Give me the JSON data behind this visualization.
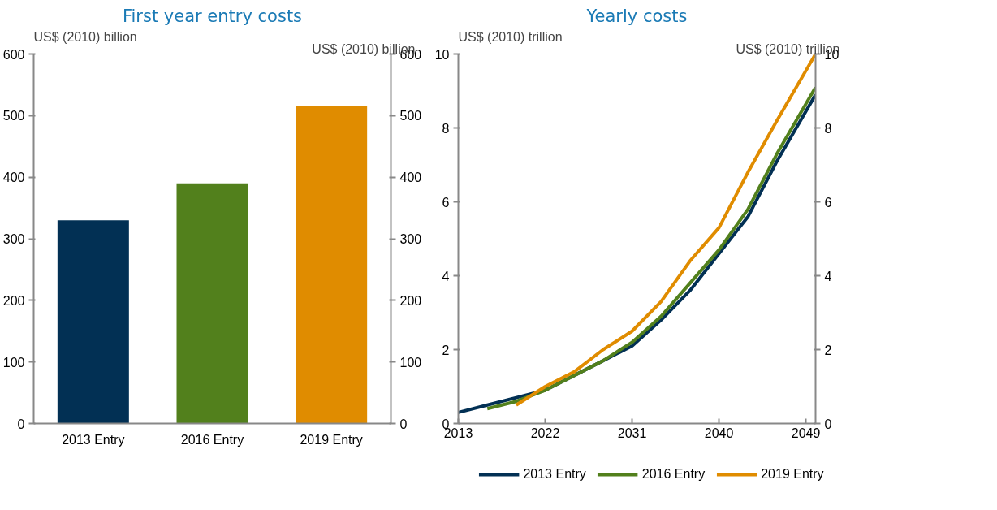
{
  "chart_data": [
    {
      "type": "bar",
      "title": "First year entry costs",
      "ylabel": "US$ (2010) billion",
      "y2label": "US$ (2010) billion",
      "categories": [
        "2013 Entry",
        "2016 Entry",
        "2019 Entry"
      ],
      "values": [
        330,
        390,
        515
      ],
      "colors": [
        "#023054",
        "#52801c",
        "#e08c00"
      ],
      "ylim": [
        0,
        600
      ],
      "yticks": [
        0,
        100,
        200,
        300,
        400,
        500,
        600
      ],
      "y2lim": [
        0,
        600
      ],
      "y2ticks": [
        0,
        100,
        200,
        300,
        400,
        500,
        600
      ]
    },
    {
      "type": "line",
      "title": "Yearly costs",
      "ylabel": "US$ (2010) trillion",
      "y2label": "US$ (2010) trillion",
      "xlim": [
        2013,
        2050
      ],
      "xticks": [
        2013,
        2022,
        2031,
        2040,
        2049
      ],
      "ylim": [
        0,
        10
      ],
      "yticks": [
        0,
        2,
        4,
        6,
        8,
        10
      ],
      "y2lim": [
        0,
        10
      ],
      "y2ticks": [
        0,
        2,
        4,
        6,
        8,
        10
      ],
      "legend": "bottom",
      "series": [
        {
          "name": "2013 Entry",
          "color": "#023054",
          "x": [
            2013,
            2016,
            2019,
            2022,
            2025,
            2028,
            2031,
            2034,
            2037,
            2040,
            2043,
            2046,
            2050
          ],
          "values": [
            0.3,
            0.5,
            0.7,
            0.9,
            1.3,
            1.7,
            2.1,
            2.8,
            3.6,
            4.6,
            5.6,
            7.1,
            8.9
          ]
        },
        {
          "name": "2016 Entry",
          "color": "#52801c",
          "x": [
            2016,
            2019,
            2022,
            2025,
            2028,
            2031,
            2034,
            2037,
            2040,
            2043,
            2046,
            2050
          ],
          "values": [
            0.4,
            0.6,
            0.9,
            1.3,
            1.7,
            2.2,
            2.9,
            3.8,
            4.7,
            5.8,
            7.3,
            9.1
          ]
        },
        {
          "name": "2019 Entry",
          "color": "#e08c00",
          "x": [
            2019,
            2022,
            2025,
            2028,
            2031,
            2034,
            2037,
            2040,
            2043,
            2046,
            2050
          ],
          "values": [
            0.5,
            1.0,
            1.4,
            2.0,
            2.5,
            3.3,
            4.4,
            5.3,
            6.8,
            8.2,
            10.0
          ]
        }
      ]
    }
  ]
}
